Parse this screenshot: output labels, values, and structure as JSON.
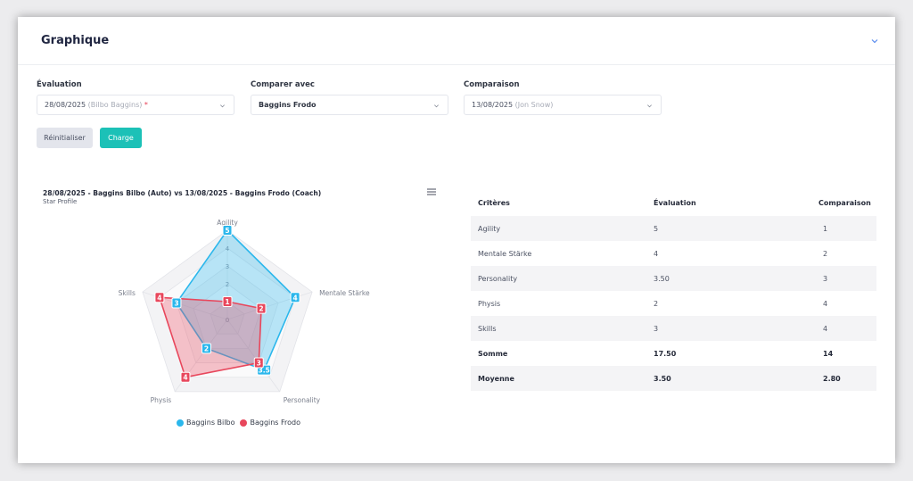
{
  "header": {
    "title": "Graphique"
  },
  "filters": {
    "evaluation": {
      "label": "Évaluation",
      "date": "28/08/2025",
      "person": "(Bilbo Baggins)",
      "required": "*"
    },
    "compare_with": {
      "label": "Comparer avec",
      "value": "Baggins Frodo"
    },
    "comparison": {
      "label": "Comparaison",
      "date": "13/08/2025",
      "person": "(Jon Snow)"
    }
  },
  "buttons": {
    "reset": "Réinitialiser",
    "load": "Charge"
  },
  "chart": {
    "title": "28/08/2025 - Baggins Bilbo (Auto) vs 13/08/2025 - Baggins Frodo (Coach)",
    "subtitle": "Star Profile"
  },
  "chart_data": {
    "type": "radar",
    "title": "28/08/2025 - Baggins Bilbo (Auto) vs 13/08/2025 - Baggins Frodo (Coach)",
    "subtitle": "Star Profile",
    "axes": [
      "Agility",
      "Mentale Stärke",
      "Personality",
      "Physis",
      "Skills"
    ],
    "scale_ticks": [
      "0",
      "1",
      "2",
      "3",
      "4",
      "5"
    ],
    "range": [
      0,
      5
    ],
    "series": [
      {
        "name": "Baggins Bilbo",
        "color": "#2bb7ec",
        "values": [
          5,
          4,
          3.5,
          2,
          3
        ]
      },
      {
        "name": "Baggins Frodo",
        "color": "#e8475c",
        "values": [
          1,
          2,
          3,
          4,
          4
        ]
      }
    ],
    "legend": "bottom"
  },
  "table": {
    "headers": [
      "Critères",
      "Évaluation",
      "Comparaison"
    ],
    "rows": [
      [
        "Agility",
        "5",
        "1"
      ],
      [
        "Mentale Stärke",
        "4",
        "2"
      ],
      [
        "Personality",
        "3.50",
        "3"
      ],
      [
        "Physis",
        "2",
        "4"
      ],
      [
        "Skills",
        "3",
        "4"
      ]
    ],
    "sum": [
      "Somme",
      "17.50",
      "14"
    ],
    "mean": [
      "Moyenne",
      "3.50",
      "2.80"
    ]
  }
}
